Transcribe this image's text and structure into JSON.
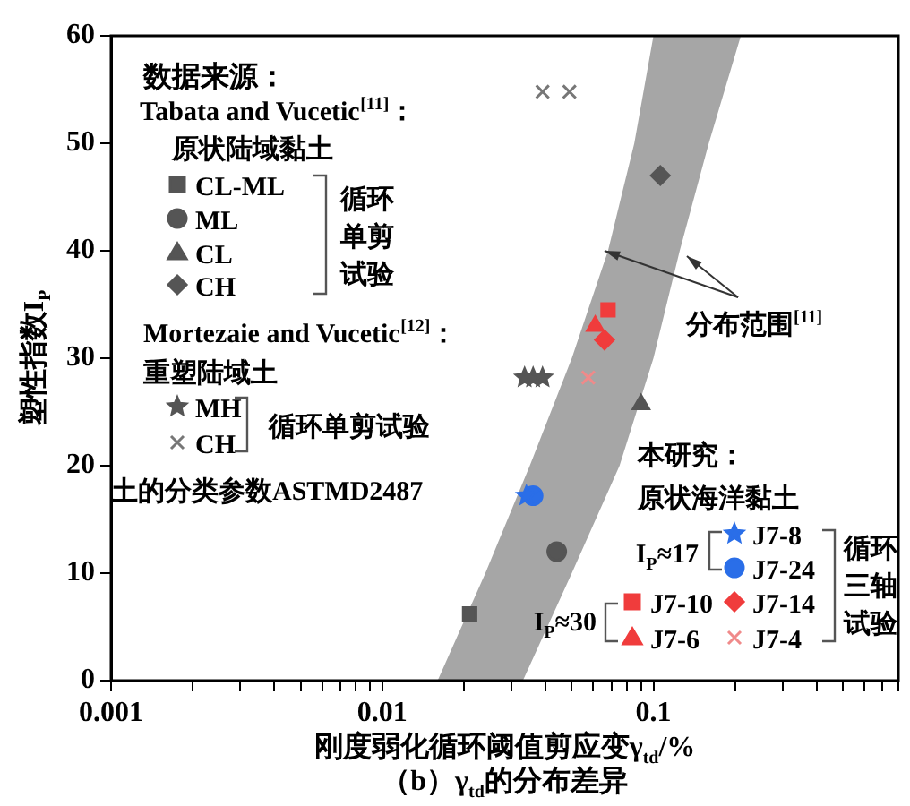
{
  "chart_data": {
    "type": "scatter",
    "title": "（b）γ$_{td}$的分布差异",
    "xlabel": "刚度弱化循环阈值剪应变γ$_{td}$/%",
    "ylabel": "塑性指数I$_{P}$",
    "legend_title": "数据来源：",
    "log": "x",
    "grid": false,
    "legend": "left",
    "xlim": [
      0.001,
      0.8
    ],
    "ylim": [
      0,
      60
    ],
    "xticks": [
      0.001,
      {
        "value": 0.002,
        "label": null
      },
      {
        "value": 0.003,
        "label": null
      },
      {
        "value": 0.004,
        "label": null
      },
      {
        "value": 0.005,
        "label": null
      },
      {
        "value": 0.006,
        "label": null
      },
      {
        "value": 0.007,
        "label": null
      },
      {
        "value": 0.008,
        "label": null
      },
      {
        "value": 0.009,
        "label": null
      },
      0.01,
      {
        "value": 0.02,
        "label": null
      },
      {
        "value": 0.03,
        "label": null
      },
      {
        "value": 0.04,
        "label": null
      },
      {
        "value": 0.05,
        "label": null
      },
      {
        "value": 0.06,
        "label": null
      },
      {
        "value": 0.07,
        "label": null
      },
      {
        "value": 0.08,
        "label": null
      },
      {
        "value": 0.09,
        "label": null
      },
      0.1,
      {
        "value": 0.2,
        "label": null
      },
      {
        "value": 0.3,
        "label": null
      },
      {
        "value": 0.4,
        "label": null
      },
      {
        "value": 0.5,
        "label": null
      },
      {
        "value": 0.6,
        "label": null
      },
      {
        "value": 0.7,
        "label": null
      },
      {
        "value": 0.8,
        "label": null
      }
    ],
    "yticks": [
      0,
      10,
      20,
      30,
      40,
      50,
      60
    ],
    "annotations": [
      "Tabata and Vucetic$^{[11]}$：",
      "原状陆域黏土",
      "循环单剪试验",
      "Mortezaie and Vucetic$^{[12]}$：",
      "重塑陆域土",
      "循环单剪试验",
      "土的分类参数ASTMD2487",
      "本研究：",
      "原状海洋黏土",
      "I$_{P}$≈17",
      "I$_{P}$≈30",
      "循环三轴试验",
      {
        "text": "分布范围$^{[11]}$",
        "x": 0.066,
        "y": 40
      }
    ],
    "series": [
      {
        "type": "area",
        "color": "#a6a6a6",
        "x": [
          0.016,
          0.024,
          0.035,
          0.05,
          0.068,
          0.085,
          0.1,
          0.21,
          0.16,
          0.125,
          0.1,
          0.075,
          0.05,
          0.033
        ],
        "values": [
          0,
          10,
          20,
          30,
          40,
          50,
          60,
          60,
          50,
          40,
          30,
          20,
          10,
          0
        ]
      },
      {
        "name": "CL-ML",
        "marker": "square",
        "color": "#555555",
        "x": [
          0.021
        ],
        "values": [
          6.2
        ]
      },
      {
        "name": "ML",
        "marker": "circle",
        "color": "#555555",
        "x": [
          0.044
        ],
        "values": [
          12
        ]
      },
      {
        "name": "CL",
        "marker": "triangle",
        "color": "#555555",
        "x": [
          0.09
        ],
        "values": [
          25.7
        ]
      },
      {
        "name": "CH",
        "marker": "diamond",
        "color": "#555555",
        "x": [
          0.106
        ],
        "values": [
          47
        ]
      },
      {
        "name": "MH",
        "marker": "star",
        "color": "#555555",
        "x": [
          0.0335,
          0.036,
          0.039
        ],
        "values": [
          28.2,
          28.2,
          28.2
        ]
      },
      {
        "name": "CH",
        "marker": "cross",
        "color": "#777777",
        "x": [
          0.039,
          0.049
        ],
        "values": [
          54.8,
          54.8
        ]
      },
      {
        "name": "J7-8",
        "marker": "star",
        "color": "#2a6ee8",
        "x": [
          0.034
        ],
        "values": [
          17.2
        ]
      },
      {
        "name": "J7-24",
        "marker": "circle",
        "color": "#2a6ee8",
        "x": [
          0.036
        ],
        "values": [
          17.2
        ]
      },
      {
        "name": "J7-10",
        "marker": "square",
        "color": "#f03c3c",
        "x": [
          0.068
        ],
        "values": [
          34.5
        ]
      },
      {
        "name": "J7-6",
        "marker": "triangle",
        "color": "#f03c3c",
        "x": [
          0.061
        ],
        "values": [
          33
        ]
      },
      {
        "name": "J7-14",
        "marker": "diamond",
        "color": "#f03c3c",
        "x": [
          0.066
        ],
        "values": [
          31.7
        ]
      },
      {
        "name": "J7-4",
        "marker": "cross",
        "color": "#f08a8a",
        "x": [
          0.0575
        ],
        "values": [
          28.2
        ]
      }
    ]
  }
}
